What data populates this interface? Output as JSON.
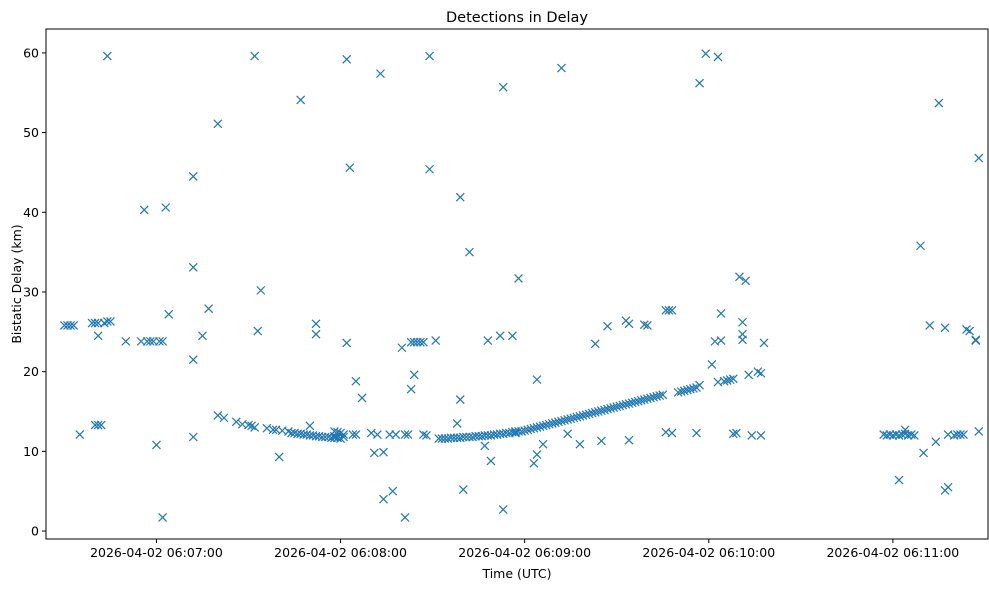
{
  "chart_data": {
    "type": "scatter",
    "title": "Detections in Delay",
    "xlabel": "Time (UTC)",
    "ylabel": "Bistatic Delay (km)",
    "marker": "x",
    "color": "#1f77b4",
    "x_unit": "seconds after 2026-04-02 06:06:00 UTC",
    "xlim": [
      24,
      331
    ],
    "ylim": [
      -1,
      63
    ],
    "x_ticks": [
      {
        "value": 60,
        "label": "2026-04-02 06:07:00"
      },
      {
        "value": 120,
        "label": "2026-04-02 06:08:00"
      },
      {
        "value": 180,
        "label": "2026-04-02 06:09:00"
      },
      {
        "value": 240,
        "label": "2026-04-02 06:10:00"
      },
      {
        "value": 300,
        "label": "2026-04-02 06:11:00"
      }
    ],
    "y_ticks": [
      0,
      10,
      20,
      30,
      40,
      50,
      60
    ],
    "series": [
      {
        "name": "detections",
        "points": [
          [
            30,
            25.8
          ],
          [
            31,
            25.8
          ],
          [
            32,
            25.8
          ],
          [
            33,
            25.8
          ],
          [
            35,
            12.1
          ],
          [
            39,
            26.1
          ],
          [
            40,
            26.1
          ],
          [
            41,
            26.1
          ],
          [
            40,
            13.3
          ],
          [
            41,
            13.3
          ],
          [
            42,
            13.3
          ],
          [
            41,
            24.5
          ],
          [
            43,
            26.1
          ],
          [
            44,
            26.3
          ],
          [
            45,
            26.3
          ],
          [
            44,
            59.6
          ],
          [
            50,
            23.8
          ],
          [
            55,
            23.8
          ],
          [
            57,
            23.8
          ],
          [
            59,
            23.8
          ],
          [
            58,
            23.8
          ],
          [
            61,
            23.8
          ],
          [
            62,
            23.8
          ],
          [
            60,
            10.8
          ],
          [
            62,
            1.7
          ],
          [
            63,
            40.6
          ],
          [
            64,
            27.2
          ],
          [
            56,
            40.3
          ],
          [
            72,
            21.5
          ],
          [
            72,
            11.8
          ],
          [
            72,
            33.1
          ],
          [
            72,
            44.5
          ],
          [
            75,
            24.5
          ],
          [
            77,
            27.9
          ],
          [
            80,
            14.5
          ],
          [
            82,
            14.2
          ],
          [
            80,
            51.1
          ],
          [
            86,
            13.7
          ],
          [
            88,
            13.4
          ],
          [
            90,
            13.3
          ],
          [
            91,
            13.2
          ],
          [
            92,
            13.0
          ],
          [
            93,
            25.1
          ],
          [
            92,
            59.6
          ],
          [
            94,
            30.2
          ],
          [
            96,
            12.9
          ],
          [
            98,
            12.7
          ],
          [
            99,
            12.7
          ],
          [
            100,
            9.3
          ],
          [
            101,
            12.6
          ],
          [
            103,
            12.5
          ],
          [
            104,
            12.3
          ],
          [
            105,
            12.3
          ],
          [
            106,
            12.2
          ],
          [
            107,
            12.2
          ],
          [
            108,
            12.1
          ],
          [
            109,
            12.1
          ],
          [
            110,
            12.0
          ],
          [
            111,
            12.0
          ],
          [
            112,
            11.9
          ],
          [
            113,
            11.9
          ],
          [
            114,
            11.8
          ],
          [
            115,
            11.8
          ],
          [
            116,
            11.8
          ],
          [
            117,
            11.7
          ],
          [
            118,
            11.7
          ],
          [
            119,
            11.7
          ],
          [
            120,
            11.6
          ],
          [
            107,
            54.1
          ],
          [
            110,
            13.2
          ],
          [
            112,
            26.0
          ],
          [
            112,
            24.7
          ],
          [
            118,
            12.5
          ],
          [
            119,
            12.4
          ],
          [
            120,
            12.3
          ],
          [
            121,
            12.1
          ],
          [
            118,
            11.9
          ],
          [
            119,
            11.7
          ],
          [
            121,
            11.8
          ],
          [
            122,
            23.6
          ],
          [
            122,
            59.2
          ],
          [
            123,
            45.6
          ],
          [
            124,
            12.1
          ],
          [
            125,
            12.1
          ],
          [
            125,
            18.8
          ],
          [
            127,
            16.7
          ],
          [
            130,
            12.3
          ],
          [
            131,
            9.8
          ],
          [
            132,
            12.1
          ],
          [
            133,
            57.4
          ],
          [
            134,
            9.9
          ],
          [
            134,
            4.0
          ],
          [
            136,
            12.1
          ],
          [
            137,
            5.0
          ],
          [
            138,
            12.1
          ],
          [
            140,
            23.0
          ],
          [
            141,
            12.1
          ],
          [
            141,
            1.7
          ],
          [
            142,
            12.1
          ],
          [
            143,
            23.7
          ],
          [
            143,
            17.8
          ],
          [
            144,
            19.6
          ],
          [
            144,
            23.7
          ],
          [
            145,
            23.7
          ],
          [
            146,
            23.7
          ],
          [
            147,
            12.1
          ],
          [
            147,
            23.7
          ],
          [
            148,
            12.0
          ],
          [
            149,
            59.6
          ],
          [
            149,
            45.4
          ],
          [
            151,
            23.9
          ],
          [
            152,
            11.6
          ],
          [
            153,
            11.6
          ],
          [
            154,
            11.6
          ],
          [
            155,
            11.6
          ],
          [
            156,
            11.7
          ],
          [
            157,
            11.7
          ],
          [
            158,
            11.7
          ],
          [
            159,
            11.7
          ],
          [
            160,
            11.8
          ],
          [
            161,
            11.8
          ],
          [
            162,
            11.8
          ],
          [
            163,
            11.8
          ],
          [
            164,
            11.9
          ],
          [
            165,
            11.9
          ],
          [
            166,
            11.9
          ],
          [
            167,
            12.0
          ],
          [
            168,
            12.0
          ],
          [
            169,
            12.0
          ],
          [
            170,
            12.1
          ],
          [
            171,
            12.1
          ],
          [
            172,
            12.2
          ],
          [
            173,
            12.2
          ],
          [
            174,
            12.3
          ],
          [
            175,
            12.3
          ],
          [
            176,
            12.4
          ],
          [
            177,
            12.4
          ],
          [
            178,
            12.5
          ],
          [
            179,
            12.5
          ],
          [
            180,
            12.6
          ],
          [
            158,
            13.5
          ],
          [
            159,
            16.5
          ],
          [
            159,
            41.9
          ],
          [
            160,
            5.2
          ],
          [
            162,
            35.0
          ],
          [
            167,
            10.7
          ],
          [
            168,
            23.9
          ],
          [
            169,
            8.8
          ],
          [
            172,
            24.5
          ],
          [
            173,
            55.7
          ],
          [
            173,
            2.7
          ],
          [
            176,
            24.5
          ],
          [
            177,
            12.3
          ],
          [
            177,
            12.5
          ],
          [
            178,
            31.7
          ],
          [
            181,
            12.7
          ],
          [
            182,
            12.8
          ],
          [
            183,
            12.9
          ],
          [
            184,
            13.0
          ],
          [
            185,
            13.1
          ],
          [
            186,
            13.2
          ],
          [
            187,
            13.3
          ],
          [
            188,
            13.4
          ],
          [
            189,
            13.5
          ],
          [
            190,
            13.6
          ],
          [
            191,
            13.7
          ],
          [
            192,
            13.8
          ],
          [
            193,
            13.9
          ],
          [
            194,
            14.0
          ],
          [
            195,
            14.1
          ],
          [
            196,
            14.2
          ],
          [
            197,
            14.3
          ],
          [
            198,
            14.4
          ],
          [
            199,
            14.5
          ],
          [
            200,
            14.6
          ],
          [
            201,
            14.7
          ],
          [
            202,
            14.8
          ],
          [
            203,
            14.9
          ],
          [
            204,
            15.0
          ],
          [
            205,
            15.1
          ],
          [
            206,
            15.2
          ],
          [
            207,
            15.3
          ],
          [
            208,
            15.4
          ],
          [
            209,
            15.5
          ],
          [
            210,
            15.6
          ],
          [
            211,
            15.7
          ],
          [
            212,
            15.8
          ],
          [
            213,
            15.9
          ],
          [
            214,
            16.0
          ],
          [
            215,
            16.1
          ],
          [
            216,
            16.2
          ],
          [
            217,
            16.3
          ],
          [
            218,
            16.4
          ],
          [
            219,
            16.5
          ],
          [
            220,
            16.6
          ],
          [
            221,
            16.7
          ],
          [
            222,
            16.8
          ],
          [
            223,
            16.9
          ],
          [
            224,
            17.0
          ],
          [
            225,
            17.1
          ],
          [
            183,
            8.5
          ],
          [
            184,
            9.6
          ],
          [
            184,
            19.0
          ],
          [
            186,
            10.9
          ],
          [
            192,
            58.1
          ],
          [
            194,
            12.2
          ],
          [
            198,
            10.9
          ],
          [
            203,
            23.5
          ],
          [
            205,
            11.3
          ],
          [
            207,
            25.7
          ],
          [
            213,
            26.4
          ],
          [
            214,
            26.0
          ],
          [
            214,
            11.4
          ],
          [
            219,
            25.9
          ],
          [
            220,
            25.8
          ],
          [
            226,
            27.7
          ],
          [
            227,
            27.7
          ],
          [
            228,
            27.7
          ],
          [
            226,
            12.4
          ],
          [
            228,
            12.3
          ],
          [
            230,
            17.4
          ],
          [
            231,
            17.5
          ],
          [
            232,
            17.6
          ],
          [
            233,
            17.7
          ],
          [
            234,
            17.8
          ],
          [
            235,
            17.9
          ],
          [
            236,
            18.0
          ],
          [
            237,
            18.3
          ],
          [
            236,
            12.3
          ],
          [
            237,
            56.2
          ],
          [
            239,
            59.9
          ],
          [
            241,
            20.9
          ],
          [
            242,
            23.8
          ],
          [
            243,
            18.7
          ],
          [
            243,
            59.5
          ],
          [
            244,
            23.9
          ],
          [
            244,
            27.3
          ],
          [
            245,
            18.8
          ],
          [
            246,
            18.9
          ],
          [
            247,
            19.0
          ],
          [
            248,
            19.1
          ],
          [
            248,
            12.2
          ],
          [
            249,
            12.3
          ],
          [
            250,
            31.9
          ],
          [
            251,
            24.7
          ],
          [
            251,
            24.0
          ],
          [
            251,
            26.2
          ],
          [
            252,
            31.4
          ],
          [
            253,
            19.6
          ],
          [
            254,
            12.0
          ],
          [
            256,
            20.0
          ],
          [
            257,
            12.0
          ],
          [
            257,
            19.8
          ],
          [
            258,
            23.6
          ],
          [
            297,
            12.1
          ],
          [
            298,
            12.0
          ],
          [
            299,
            12.1
          ],
          [
            300,
            12.0
          ],
          [
            301,
            12.1
          ],
          [
            302,
            12.0
          ],
          [
            303,
            12.1
          ],
          [
            304,
            12.2
          ],
          [
            305,
            12.0
          ],
          [
            306,
            12.1
          ],
          [
            302,
            6.4
          ],
          [
            304,
            12.7
          ],
          [
            307,
            12.0
          ],
          [
            309,
            35.8
          ],
          [
            310,
            9.8
          ],
          [
            312,
            25.8
          ],
          [
            314,
            11.2
          ],
          [
            315,
            53.7
          ],
          [
            317,
            5.1
          ],
          [
            317,
            25.5
          ],
          [
            318,
            12.1
          ],
          [
            318,
            5.5
          ],
          [
            320,
            12.0
          ],
          [
            321,
            12.1
          ],
          [
            322,
            12.1
          ],
          [
            323,
            12.1
          ],
          [
            324,
            25.3
          ],
          [
            325,
            25.1
          ],
          [
            327,
            23.9
          ],
          [
            327,
            24.0
          ],
          [
            328,
            46.8
          ],
          [
            328,
            12.5
          ]
        ]
      }
    ]
  }
}
